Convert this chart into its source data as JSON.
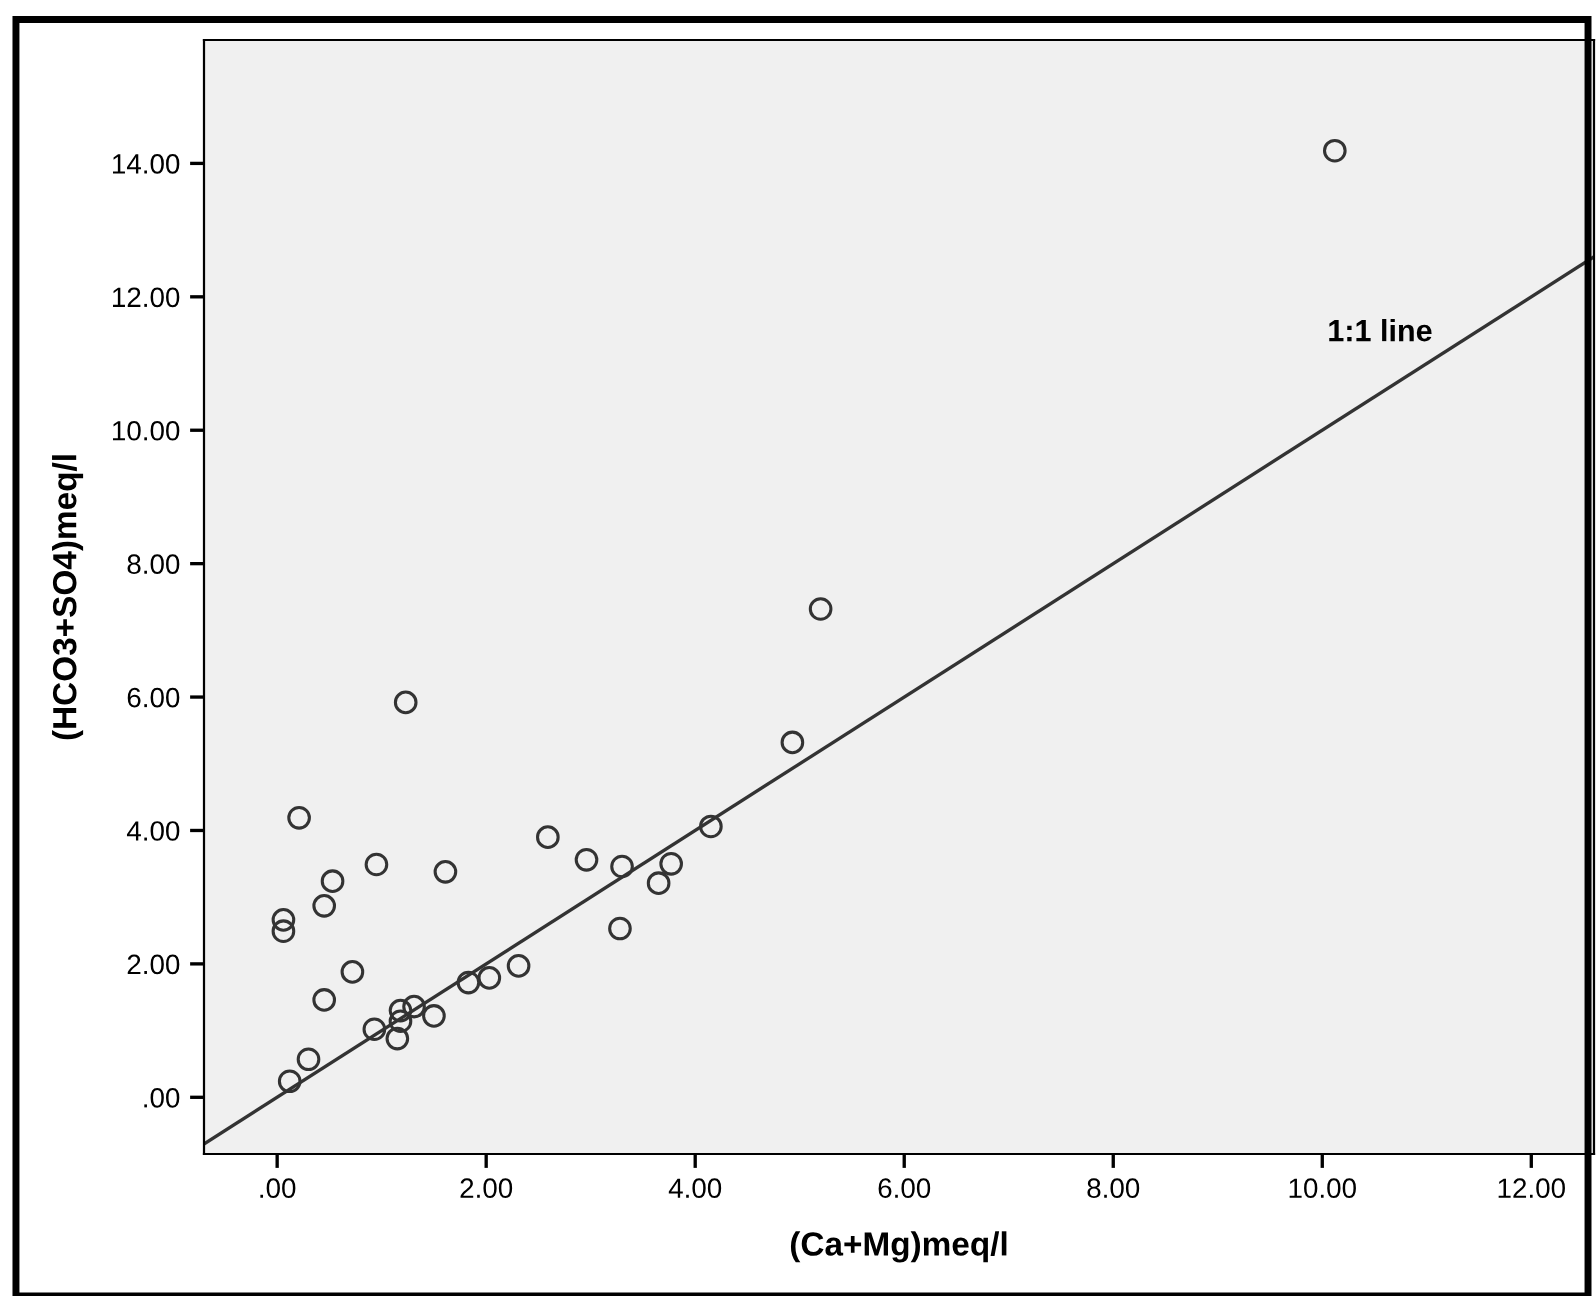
{
  "chart_data": {
    "type": "scatter",
    "xlabel": "(Ca+Mg)meq/l",
    "ylabel": "(HCO3+SO4)meq/l",
    "xlim": [
      -0.7,
      12.6
    ],
    "ylim": [
      -0.85,
      15.85
    ],
    "xticks": [
      {
        "value": 0,
        "label": ".00"
      },
      {
        "value": 2,
        "label": "2.00"
      },
      {
        "value": 4,
        "label": "4.00"
      },
      {
        "value": 6,
        "label": "6.00"
      },
      {
        "value": 8,
        "label": "8.00"
      },
      {
        "value": 10,
        "label": "10.00"
      },
      {
        "value": 12,
        "label": "12.00"
      }
    ],
    "yticks": [
      {
        "value": 0,
        "label": ".00"
      },
      {
        "value": 2,
        "label": "2.00"
      },
      {
        "value": 4,
        "label": "4.00"
      },
      {
        "value": 6,
        "label": "6.00"
      },
      {
        "value": 8,
        "label": "8.00"
      },
      {
        "value": 10,
        "label": "10.00"
      },
      {
        "value": 12,
        "label": "12.00"
      },
      {
        "value": 14,
        "label": "14.00"
      }
    ],
    "grid": false,
    "legend": false,
    "marker": "circle",
    "series": [
      {
        "color": "#333333",
        "x": [
          1.23,
          0.21,
          2.59,
          2.96,
          0.53,
          0.95,
          1.61,
          0.45,
          0.06,
          0.06,
          0.72,
          0.45,
          2.31,
          2.03,
          1.83,
          0.93,
          1.18,
          1.31,
          1.18,
          1.5,
          1.15,
          0.3,
          0.12,
          5.2,
          4.93,
          4.15,
          3.3,
          3.77,
          3.65,
          3.28,
          10.12
        ],
        "values": [
          5.92,
          4.19,
          3.9,
          3.56,
          3.24,
          3.49,
          3.38,
          2.87,
          2.66,
          2.49,
          1.88,
          1.46,
          1.97,
          1.79,
          1.72,
          1.02,
          1.3,
          1.36,
          1.14,
          1.22,
          0.88,
          0.57,
          0.24,
          7.32,
          5.32,
          4.06,
          3.46,
          3.5,
          3.21,
          2.53,
          14.19
        ]
      },
      {
        "type": "line",
        "name": "1:1 line",
        "color": "#333333",
        "x": [
          -0.7,
          12.6
        ],
        "values": [
          -0.7,
          12.6
        ],
        "marker": "none",
        "line_style": "solid"
      }
    ]
  }
}
